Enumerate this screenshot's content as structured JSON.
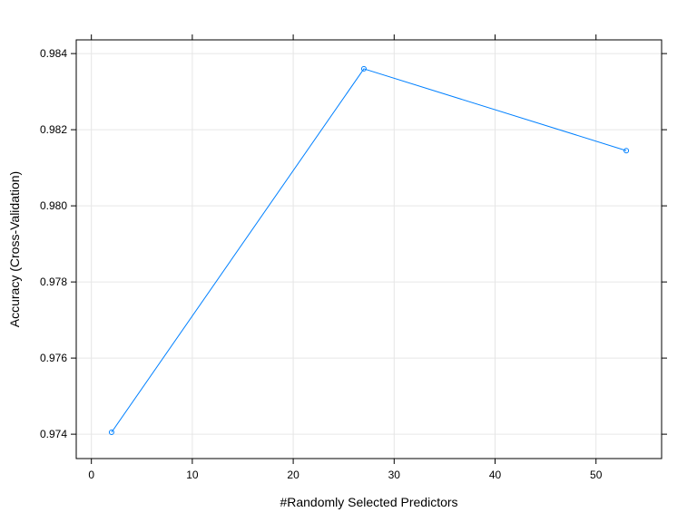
{
  "chart_data": {
    "type": "line",
    "title": "",
    "xlabel": "#Randomly Selected Predictors",
    "ylabel": "Accuracy (Cross-Validation)",
    "xlim": [
      -1.5,
      56.5
    ],
    "ylim": [
      0.97336,
      0.98436
    ],
    "x_ticks": [
      0,
      10,
      20,
      30,
      40,
      50
    ],
    "y_ticks": [
      0.974,
      0.976,
      0.978,
      0.98,
      0.982,
      0.984
    ],
    "y_tick_labels": [
      "0.974",
      "0.976",
      "0.978",
      "0.980",
      "0.982",
      "0.984"
    ],
    "grid": true,
    "color": "#0080ff",
    "series": [
      {
        "x": [
          2,
          27,
          53
        ],
        "values": [
          0.97405,
          0.9836,
          0.98145
        ]
      }
    ]
  }
}
